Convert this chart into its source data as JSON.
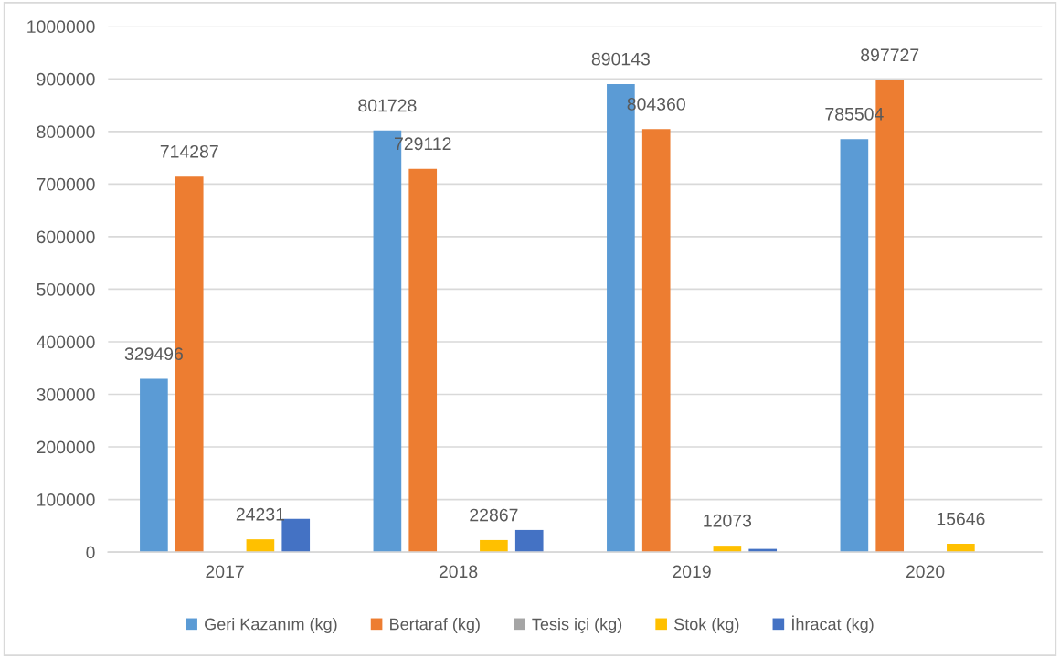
{
  "chart_data": {
    "type": "bar",
    "categories": [
      "2017",
      "2018",
      "2019",
      "2020"
    ],
    "series": [
      {
        "name": "Geri Kazanım (kg)",
        "color": "#5b9bd5",
        "values": [
          329496,
          801728,
          890143,
          785504
        ],
        "value_labels": [
          "329496",
          "801728",
          "890143",
          "785504"
        ]
      },
      {
        "name": "Bertaraf (kg)",
        "color": "#ed7d31",
        "values": [
          714287,
          729112,
          804360,
          897727
        ],
        "value_labels": [
          "714287",
          "729112",
          "804360",
          "897727"
        ]
      },
      {
        "name": "Tesis içi (kg)",
        "color": "#a5a5a5",
        "values": [
          null,
          null,
          null,
          null
        ]
      },
      {
        "name": "Stok (kg)",
        "color": "#ffc000",
        "values": [
          24231,
          22867,
          12073,
          15646
        ],
        "value_labels": [
          "24231",
          "22867",
          "12073",
          "15646"
        ]
      },
      {
        "name": "İhracat (kg)",
        "color": "#4472c4",
        "values": [
          63000,
          42000,
          6000,
          null
        ]
      }
    ],
    "ylim": [
      0,
      1000000
    ],
    "yticks": [
      0,
      100000,
      200000,
      300000,
      400000,
      500000,
      600000,
      700000,
      800000,
      900000,
      1000000
    ],
    "grid": "y",
    "legend": "bottom"
  }
}
